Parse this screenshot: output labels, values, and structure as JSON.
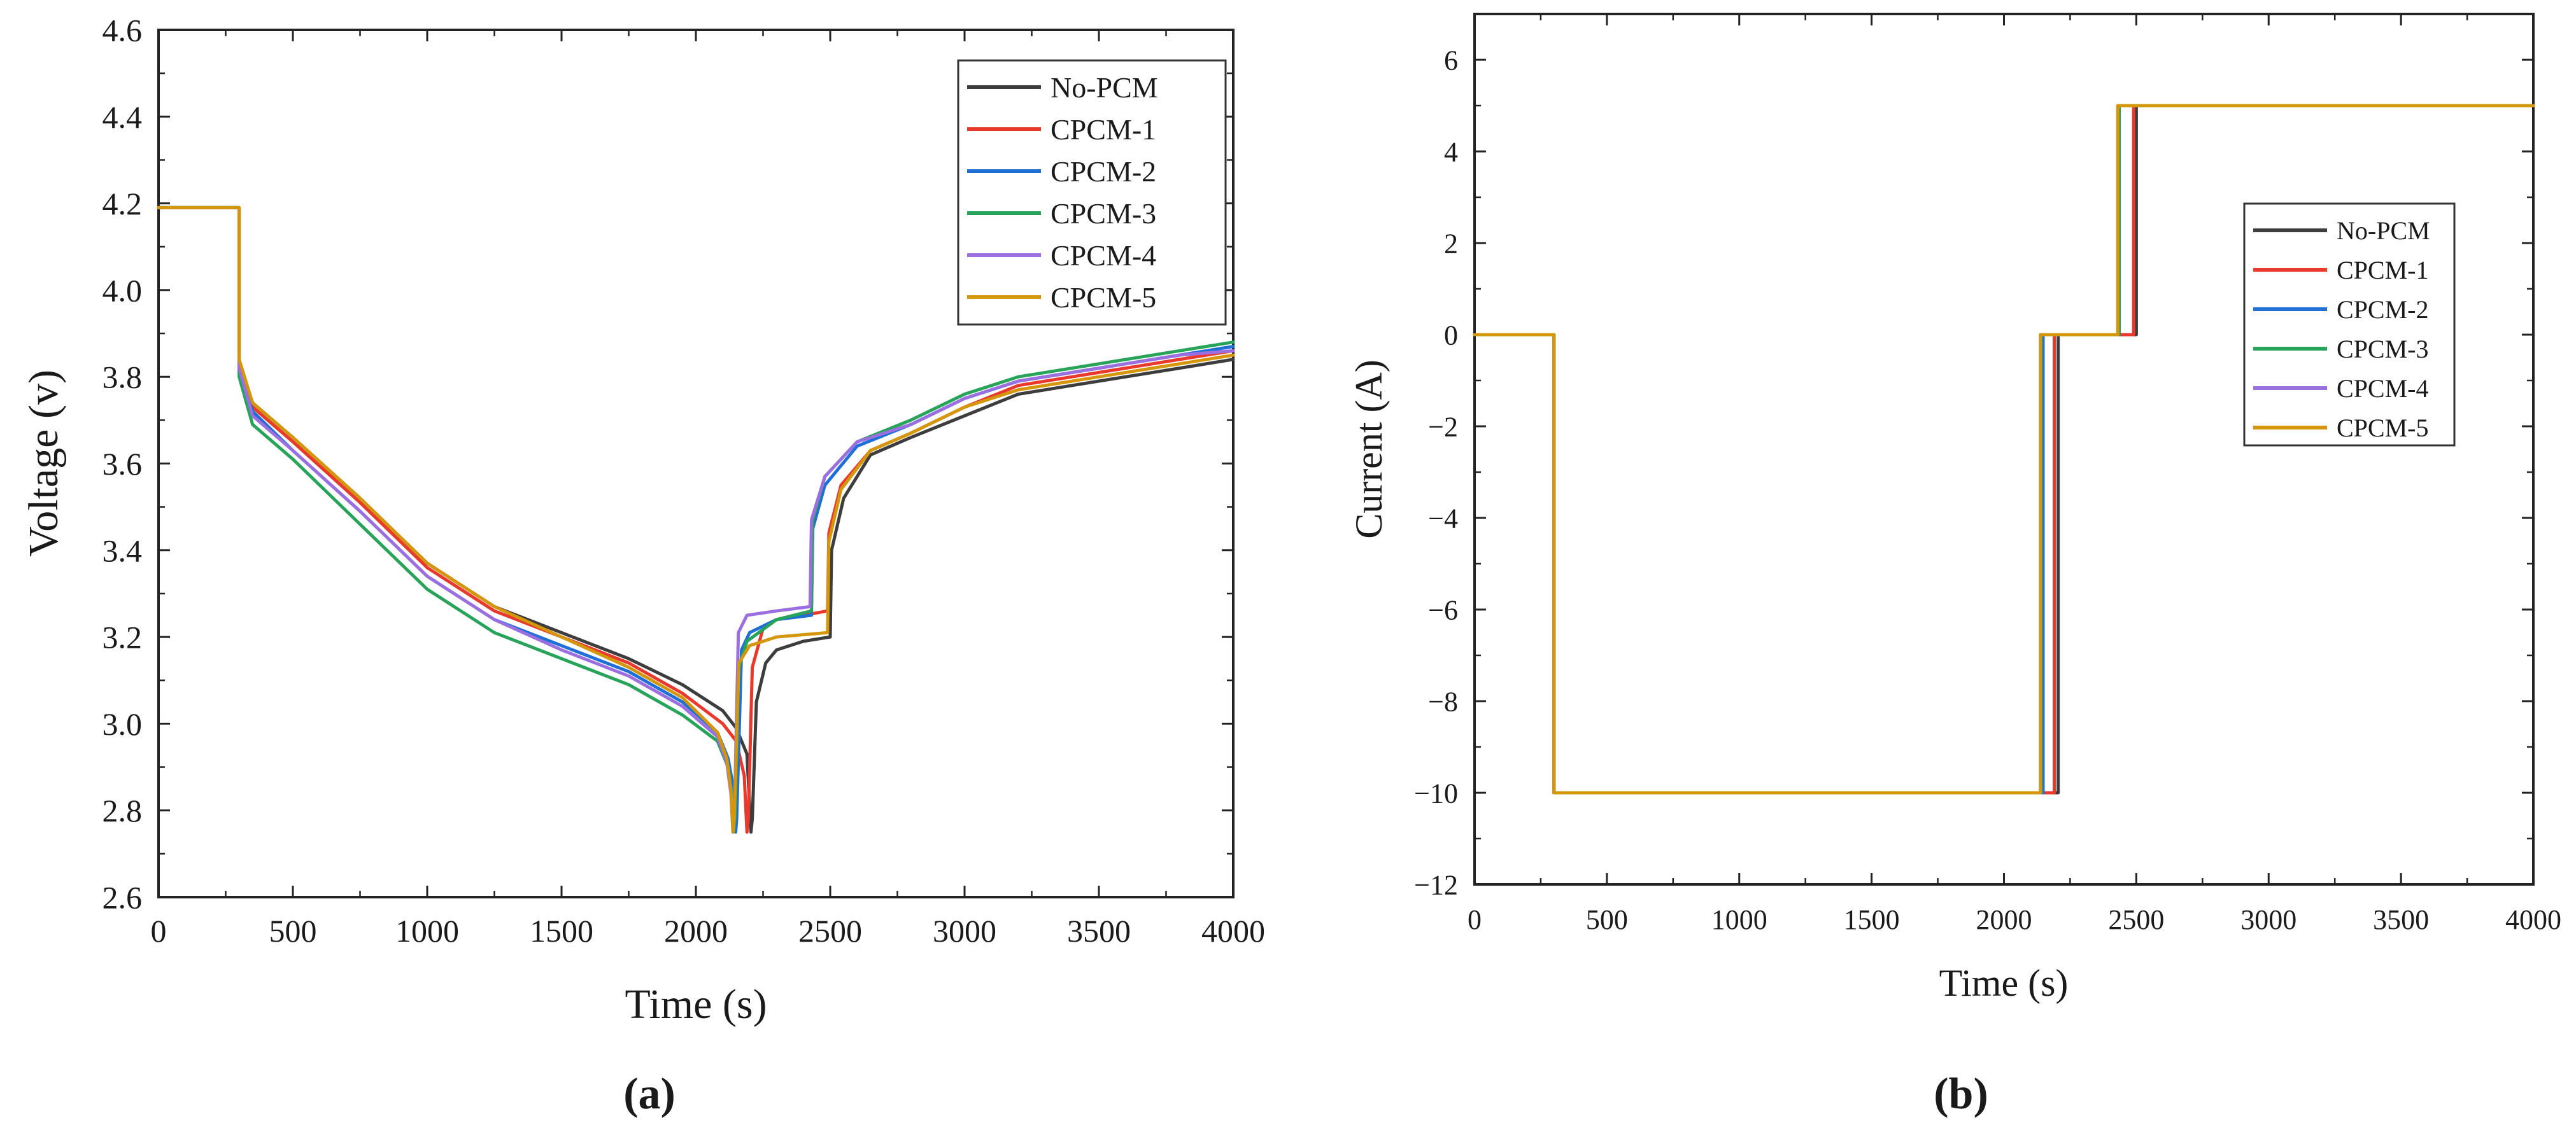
{
  "chart_data": [
    {
      "type": "line",
      "panel_label": "(a)",
      "xlabel": "Time (s)",
      "ylabel": "Voltage (v)",
      "xlim": [
        0,
        4000
      ],
      "ylim": [
        2.6,
        4.6
      ],
      "x_ticks": [
        0,
        500,
        1000,
        1500,
        2000,
        2500,
        3000,
        3500,
        4000
      ],
      "y_ticks": [
        2.6,
        2.8,
        3.0,
        3.2,
        3.4,
        3.6,
        3.8,
        4.0,
        4.2,
        4.4,
        4.6
      ],
      "x_tick_labels": [
        "0",
        "500",
        "1000",
        "1500",
        "2000",
        "2500",
        "3000",
        "3500",
        "4000"
      ],
      "y_tick_labels": [
        "2.6",
        "2.8",
        "3.0",
        "3.2",
        "3.4",
        "3.6",
        "3.8",
        "4.0",
        "4.2",
        "4.4",
        "4.6"
      ],
      "legend_position": "top-right",
      "series": [
        {
          "name": "No-PCM",
          "color": "#3d3d3d",
          "points": [
            [
              0,
              4.19
            ],
            [
              300,
              4.19
            ],
            [
              300,
              3.83
            ],
            [
              350,
              3.74
            ],
            [
              500,
              3.66
            ],
            [
              750,
              3.52
            ],
            [
              1000,
              3.37
            ],
            [
              1250,
              3.27
            ],
            [
              1500,
              3.21
            ],
            [
              1750,
              3.15
            ],
            [
              1950,
              3.09
            ],
            [
              2100,
              3.03
            ],
            [
              2150,
              2.99
            ],
            [
              2190,
              2.93
            ],
            [
              2205,
              2.75
            ],
            [
              2210,
              2.78
            ],
            [
              2225,
              3.05
            ],
            [
              2260,
              3.14
            ],
            [
              2300,
              3.17
            ],
            [
              2400,
              3.19
            ],
            [
              2500,
              3.2
            ],
            [
              2505,
              3.4
            ],
            [
              2550,
              3.52
            ],
            [
              2650,
              3.62
            ],
            [
              2800,
              3.66
            ],
            [
              3000,
              3.71
            ],
            [
              3200,
              3.76
            ],
            [
              3500,
              3.79
            ],
            [
              3800,
              3.82
            ],
            [
              4000,
              3.84
            ]
          ]
        },
        {
          "name": "CPCM-1",
          "color": "#e8392c",
          "points": [
            [
              0,
              4.19
            ],
            [
              300,
              4.19
            ],
            [
              300,
              3.83
            ],
            [
              350,
              3.73
            ],
            [
              500,
              3.65
            ],
            [
              750,
              3.51
            ],
            [
              1000,
              3.36
            ],
            [
              1250,
              3.26
            ],
            [
              1500,
              3.2
            ],
            [
              1750,
              3.14
            ],
            [
              1950,
              3.07
            ],
            [
              2100,
              3.0
            ],
            [
              2150,
              2.96
            ],
            [
              2180,
              2.88
            ],
            [
              2190,
              2.75
            ],
            [
              2195,
              2.78
            ],
            [
              2210,
              3.13
            ],
            [
              2250,
              3.22
            ],
            [
              2300,
              3.24
            ],
            [
              2400,
              3.25
            ],
            [
              2490,
              3.26
            ],
            [
              2495,
              3.44
            ],
            [
              2540,
              3.55
            ],
            [
              2650,
              3.63
            ],
            [
              2800,
              3.67
            ],
            [
              3000,
              3.73
            ],
            [
              3200,
              3.78
            ],
            [
              3500,
              3.81
            ],
            [
              3800,
              3.84
            ],
            [
              4000,
              3.86
            ]
          ]
        },
        {
          "name": "CPCM-2",
          "color": "#1f6fd6",
          "points": [
            [
              0,
              4.19
            ],
            [
              300,
              4.19
            ],
            [
              300,
              3.82
            ],
            [
              350,
              3.72
            ],
            [
              500,
              3.63
            ],
            [
              750,
              3.49
            ],
            [
              1000,
              3.34
            ],
            [
              1250,
              3.24
            ],
            [
              1500,
              3.18
            ],
            [
              1750,
              3.12
            ],
            [
              1950,
              3.05
            ],
            [
              2080,
              2.98
            ],
            [
              2120,
              2.92
            ],
            [
              2140,
              2.85
            ],
            [
              2148,
              2.75
            ],
            [
              2152,
              2.78
            ],
            [
              2170,
              3.17
            ],
            [
              2200,
              3.21
            ],
            [
              2300,
              3.24
            ],
            [
              2430,
              3.25
            ],
            [
              2435,
              3.45
            ],
            [
              2480,
              3.55
            ],
            [
              2600,
              3.64
            ],
            [
              2800,
              3.69
            ],
            [
              3000,
              3.75
            ],
            [
              3200,
              3.79
            ],
            [
              3500,
              3.82
            ],
            [
              3800,
              3.85
            ],
            [
              4000,
              3.87
            ]
          ]
        },
        {
          "name": "CPCM-3",
          "color": "#27a35a",
          "points": [
            [
              0,
              4.19
            ],
            [
              300,
              4.19
            ],
            [
              300,
              3.8
            ],
            [
              350,
              3.69
            ],
            [
              500,
              3.61
            ],
            [
              750,
              3.46
            ],
            [
              1000,
              3.31
            ],
            [
              1250,
              3.21
            ],
            [
              1500,
              3.15
            ],
            [
              1750,
              3.09
            ],
            [
              1950,
              3.02
            ],
            [
              2080,
              2.96
            ],
            [
              2120,
              2.9
            ],
            [
              2135,
              2.83
            ],
            [
              2140,
              2.75
            ],
            [
              2145,
              2.78
            ],
            [
              2160,
              3.13
            ],
            [
              2190,
              3.19
            ],
            [
              2300,
              3.24
            ],
            [
              2430,
              3.26
            ],
            [
              2435,
              3.47
            ],
            [
              2480,
              3.57
            ],
            [
              2600,
              3.65
            ],
            [
              2800,
              3.7
            ],
            [
              3000,
              3.76
            ],
            [
              3200,
              3.8
            ],
            [
              3500,
              3.83
            ],
            [
              3800,
              3.86
            ],
            [
              4000,
              3.88
            ]
          ]
        },
        {
          "name": "CPCM-4",
          "color": "#9b6fe0",
          "points": [
            [
              0,
              4.19
            ],
            [
              300,
              4.19
            ],
            [
              300,
              3.82
            ],
            [
              350,
              3.71
            ],
            [
              500,
              3.63
            ],
            [
              750,
              3.49
            ],
            [
              1000,
              3.34
            ],
            [
              1250,
              3.24
            ],
            [
              1500,
              3.17
            ],
            [
              1750,
              3.11
            ],
            [
              1950,
              3.04
            ],
            [
              2080,
              2.97
            ],
            [
              2115,
              2.91
            ],
            [
              2130,
              2.84
            ],
            [
              2138,
              2.75
            ],
            [
              2143,
              2.78
            ],
            [
              2158,
              3.21
            ],
            [
              2190,
              3.25
            ],
            [
              2300,
              3.26
            ],
            [
              2425,
              3.27
            ],
            [
              2430,
              3.47
            ],
            [
              2480,
              3.57
            ],
            [
              2600,
              3.65
            ],
            [
              2800,
              3.69
            ],
            [
              3000,
              3.75
            ],
            [
              3200,
              3.79
            ],
            [
              3500,
              3.82
            ],
            [
              3800,
              3.85
            ],
            [
              4000,
              3.86
            ]
          ]
        },
        {
          "name": "CPCM-5",
          "color": "#d4970b",
          "points": [
            [
              0,
              4.19
            ],
            [
              300,
              4.19
            ],
            [
              300,
              3.84
            ],
            [
              350,
              3.74
            ],
            [
              500,
              3.66
            ],
            [
              750,
              3.52
            ],
            [
              1000,
              3.37
            ],
            [
              1250,
              3.27
            ],
            [
              1500,
              3.2
            ],
            [
              1750,
              3.13
            ],
            [
              1950,
              3.06
            ],
            [
              2080,
              2.98
            ],
            [
              2115,
              2.92
            ],
            [
              2130,
              2.85
            ],
            [
              2138,
              2.75
            ],
            [
              2143,
              2.78
            ],
            [
              2160,
              3.14
            ],
            [
              2200,
              3.18
            ],
            [
              2300,
              3.2
            ],
            [
              2490,
              3.21
            ],
            [
              2495,
              3.42
            ],
            [
              2540,
              3.54
            ],
            [
              2650,
              3.63
            ],
            [
              2800,
              3.67
            ],
            [
              3000,
              3.73
            ],
            [
              3200,
              3.77
            ],
            [
              3500,
              3.8
            ],
            [
              3800,
              3.83
            ],
            [
              4000,
              3.85
            ]
          ]
        }
      ]
    },
    {
      "type": "line",
      "panel_label": "(b)",
      "xlabel": "Time (s)",
      "ylabel": "Current (A)",
      "xlim": [
        0,
        4000
      ],
      "ylim": [
        -12,
        7
      ],
      "x_ticks": [
        0,
        500,
        1000,
        1500,
        2000,
        2500,
        3000,
        3500,
        4000
      ],
      "y_ticks": [
        -12,
        -10,
        -8,
        -6,
        -4,
        -2,
        0,
        2,
        4,
        6
      ],
      "x_tick_labels": [
        "0",
        "500",
        "1000",
        "1500",
        "2000",
        "2500",
        "3000",
        "3500",
        "4000"
      ],
      "y_tick_labels": [
        "−12",
        "−10",
        "−8",
        "−6",
        "−4",
        "−2",
        "0",
        "2",
        "4",
        "6"
      ],
      "legend_position": "center-right",
      "series": [
        {
          "name": "No-PCM",
          "color": "#3d3d3d",
          "points": [
            [
              0,
              0
            ],
            [
              300,
              0
            ],
            [
              300,
              -10
            ],
            [
              2205,
              -10
            ],
            [
              2205,
              0
            ],
            [
              2500,
              0
            ],
            [
              2500,
              5
            ],
            [
              4000,
              5
            ]
          ]
        },
        {
          "name": "CPCM-1",
          "color": "#e8392c",
          "points": [
            [
              0,
              0
            ],
            [
              300,
              0
            ],
            [
              300,
              -10
            ],
            [
              2190,
              -10
            ],
            [
              2190,
              0
            ],
            [
              2490,
              0
            ],
            [
              2490,
              5
            ],
            [
              4000,
              5
            ]
          ]
        },
        {
          "name": "CPCM-2",
          "color": "#1f6fd6",
          "points": [
            [
              0,
              0
            ],
            [
              300,
              0
            ],
            [
              300,
              -10
            ],
            [
              2148,
              -10
            ],
            [
              2148,
              0
            ],
            [
              2435,
              0
            ],
            [
              2435,
              5
            ],
            [
              4000,
              5
            ]
          ]
        },
        {
          "name": "CPCM-3",
          "color": "#27a35a",
          "points": [
            [
              0,
              0
            ],
            [
              300,
              0
            ],
            [
              300,
              -10
            ],
            [
              2140,
              -10
            ],
            [
              2140,
              0
            ],
            [
              2435,
              0
            ],
            [
              2435,
              5
            ],
            [
              4000,
              5
            ]
          ]
        },
        {
          "name": "CPCM-4",
          "color": "#9b6fe0",
          "points": [
            [
              0,
              0
            ],
            [
              300,
              0
            ],
            [
              300,
              -10
            ],
            [
              2138,
              -10
            ],
            [
              2138,
              0
            ],
            [
              2430,
              0
            ],
            [
              2430,
              5
            ],
            [
              4000,
              5
            ]
          ]
        },
        {
          "name": "CPCM-5",
          "color": "#d4970b",
          "points": [
            [
              0,
              0
            ],
            [
              300,
              0
            ],
            [
              300,
              -10
            ],
            [
              2138,
              -10
            ],
            [
              2138,
              0
            ],
            [
              2430,
              0
            ],
            [
              2430,
              5
            ],
            [
              4000,
              5
            ]
          ]
        }
      ]
    }
  ]
}
